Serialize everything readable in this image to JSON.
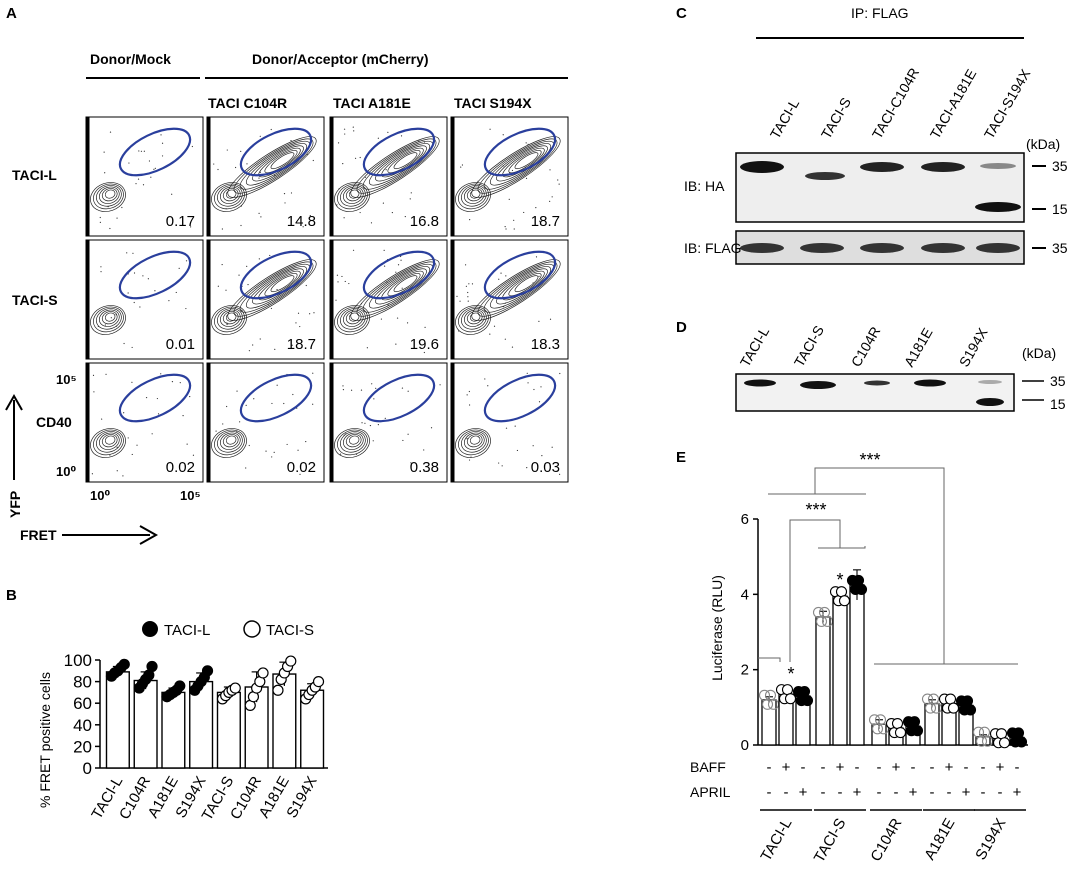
{
  "panels": {
    "a": "A",
    "b": "B",
    "c": "C",
    "d": "D",
    "e": "E"
  },
  "panelA": {
    "header_mock": "Donor/Mock",
    "header_acceptor": "Donor/Acceptor (mCherry)",
    "col_labels": [
      "TACI C104R",
      "TACI A181E",
      "TACI S194X"
    ],
    "row_labels": [
      "TACI-L",
      "TACI-S",
      "CD40"
    ],
    "values": [
      [
        "0.17",
        "14.8",
        "16.8",
        "18.7"
      ],
      [
        "0.01",
        "18.7",
        "19.6",
        "18.3"
      ],
      [
        "0.02",
        "0.02",
        "0.38",
        "0.03"
      ]
    ],
    "y_axis_label": "YFP",
    "x_axis_label": "FRET",
    "tick_y_top": "10⁵",
    "tick_y_bottom": "10⁰",
    "tick_x_left": "10⁰",
    "tick_x_right": "10⁵",
    "colors": {
      "gate": "#2a3f9d"
    }
  },
  "panelC": {
    "ip_label": "IP: FLAG",
    "lanes": [
      "TACI-L",
      "TACI-S",
      "TACI-C104R",
      "TACI-A181E",
      "TACI-S194X"
    ],
    "kda": "(kDa)",
    "blot1_label": "IB: HA",
    "blot2_label": "IB: FLAG",
    "marker_35": "35",
    "marker_15": "15",
    "marker_35b": "35"
  },
  "panelD": {
    "lanes": [
      "TACI-L",
      "TACI-S",
      "C104R",
      "A181E",
      "S194X"
    ],
    "kda": "(kDa)",
    "marker_35": "35",
    "marker_15": "15"
  },
  "chart_data": [
    {
      "type": "bar",
      "id": "B",
      "ylabel": "% FRET positive cells",
      "ylim": [
        0,
        100
      ],
      "yticks": [
        "0",
        "20",
        "40",
        "60",
        "80",
        "100"
      ],
      "categories": [
        "TACI-L",
        "C104R",
        "A181E",
        "S194X",
        "TACI-S",
        "C104R",
        "A181E",
        "S194X"
      ],
      "groups": [
        "TACI-L",
        "TACI-L",
        "TACI-L",
        "TACI-L",
        "TACI-S",
        "TACI-S",
        "TACI-S",
        "TACI-S"
      ],
      "values": [
        89,
        81,
        70,
        80,
        70,
        75,
        87,
        72
      ],
      "errors": [
        5,
        8,
        4,
        8,
        5,
        14,
        11,
        6
      ],
      "points": [
        [
          85,
          88,
          90,
          93,
          96
        ],
        [
          74,
          78,
          82,
          86,
          94
        ],
        [
          66,
          68,
          70,
          72,
          76
        ],
        [
          72,
          76,
          80,
          84,
          90
        ],
        [
          64,
          67,
          70,
          72,
          74
        ],
        [
          58,
          66,
          74,
          80,
          88
        ],
        [
          72,
          82,
          88,
          94,
          99
        ],
        [
          64,
          68,
          72,
          75,
          80
        ]
      ],
      "legend": [
        {
          "label": "TACI-L",
          "fill": "filled"
        },
        {
          "label": "TACI-S",
          "fill": "open"
        }
      ]
    },
    {
      "type": "bar",
      "id": "E",
      "ylabel": "Luciferase (RLU)",
      "ylim": [
        0,
        6
      ],
      "yticks": [
        "0",
        "2",
        "4",
        "6"
      ],
      "groups": [
        "TACI-L",
        "TACI-S",
        "C104R",
        "A181E",
        "S194X"
      ],
      "treatments": [
        "none",
        "BAFF",
        "APRIL"
      ],
      "baff_row": [
        "-",
        "+",
        "-",
        "-",
        "+",
        "-",
        "-",
        "+",
        "-",
        "-",
        "+",
        "-",
        "-",
        "+",
        "-"
      ],
      "april_row": [
        "-",
        "-",
        "+",
        "-",
        "-",
        "+",
        "-",
        "-",
        "+",
        "-",
        "-",
        "+",
        "-",
        "-",
        "+"
      ],
      "baff_label": "BAFF",
      "april_label": "APRIL",
      "values": [
        1.2,
        1.35,
        1.3,
        3.4,
        3.95,
        4.25,
        0.55,
        0.45,
        0.5,
        1.1,
        1.1,
        1.05,
        0.22,
        0.18,
        0.2
      ],
      "errors": [
        0.08,
        0.06,
        0.1,
        0.15,
        0.08,
        0.4,
        0.12,
        0.08,
        0.05,
        0.1,
        0.08,
        0.06,
        0.05,
        0.04,
        0.04
      ],
      "significance": {
        "star": "*",
        "triple": "***"
      }
    }
  ]
}
